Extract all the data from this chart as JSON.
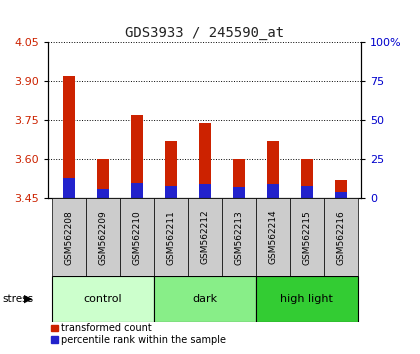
{
  "title": "GDS3933 / 245590_at",
  "samples": [
    "GSM562208",
    "GSM562209",
    "GSM562210",
    "GSM562211",
    "GSM562212",
    "GSM562213",
    "GSM562214",
    "GSM562215",
    "GSM562216"
  ],
  "red_values": [
    3.92,
    3.6,
    3.77,
    3.67,
    3.74,
    3.6,
    3.67,
    3.6,
    3.52
  ],
  "blue_percentiles": [
    13,
    6,
    10,
    8,
    9,
    7,
    9,
    8,
    4
  ],
  "base": 3.45,
  "ylim_left": [
    3.45,
    4.05
  ],
  "yticks_left": [
    3.45,
    3.6,
    3.75,
    3.9,
    4.05
  ],
  "yticks_right": [
    0,
    25,
    50,
    75,
    100
  ],
  "ylim_right": [
    0,
    100
  ],
  "groups": [
    {
      "label": "control",
      "indices": [
        0,
        1,
        2
      ],
      "color": "#ccffcc"
    },
    {
      "label": "dark",
      "indices": [
        3,
        4,
        5
      ],
      "color": "#88ee88"
    },
    {
      "label": "high light",
      "indices": [
        6,
        7,
        8
      ],
      "color": "#33cc33"
    }
  ],
  "legend_red_label": "transformed count",
  "legend_blue_label": "percentile rank within the sample",
  "bar_width": 0.35,
  "red_color": "#cc2200",
  "blue_color": "#2222cc",
  "tick_label_color_left": "#cc2200",
  "tick_label_color_right": "#0000cc",
  "sample_box_color": "#cccccc",
  "fig_width": 4.2,
  "fig_height": 3.54,
  "dpi": 100
}
